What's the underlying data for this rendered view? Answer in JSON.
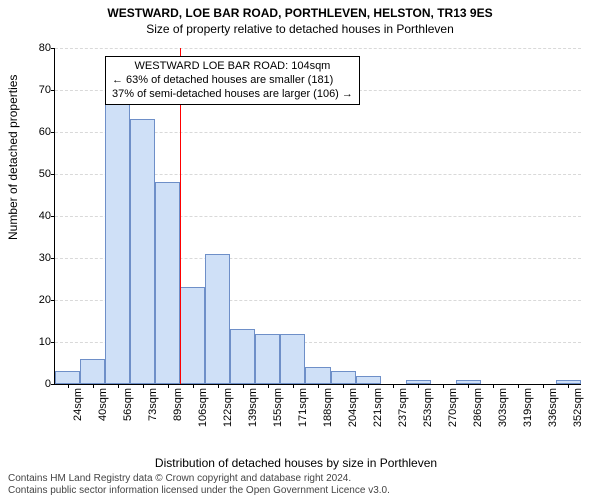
{
  "header": {
    "address": "WESTWARD, LOE BAR ROAD, PORTHLEVEN, HELSTON, TR13 9ES",
    "subtitle": "Size of property relative to detached houses in Porthleven",
    "address_fontsize": 12,
    "subtitle_fontsize": 12
  },
  "chart": {
    "type": "histogram",
    "y_label": "Number of detached properties",
    "x_label": "Distribution of detached houses by size in Porthleven",
    "label_fontsize": 12,
    "tick_fontsize": 11,
    "background_color": "#ffffff",
    "bar_fill": "#cfe0f7",
    "bar_stroke": "#6e8fc8",
    "grid_color": "#d9d9d9",
    "ref_line_color": "#ff0000",
    "ref_line_x_index": 5,
    "ylim": [
      0,
      80
    ],
    "ytick_step": 10,
    "bar_width_ratio": 1.0,
    "x_categories": [
      "24sqm",
      "40sqm",
      "56sqm",
      "73sqm",
      "89sqm",
      "106sqm",
      "122sqm",
      "139sqm",
      "155sqm",
      "171sqm",
      "188sqm",
      "204sqm",
      "221sqm",
      "237sqm",
      "253sqm",
      "270sqm",
      "286sqm",
      "303sqm",
      "319sqm",
      "336sqm",
      "352sqm"
    ],
    "values": [
      3,
      6,
      67,
      63,
      48,
      23,
      31,
      13,
      12,
      12,
      4,
      3,
      2,
      0,
      1,
      0,
      1,
      0,
      0,
      0,
      1
    ],
    "annotation": {
      "lines": [
        "WESTWARD LOE BAR ROAD: 104sqm",
        "← 63% of detached houses are smaller (181)",
        "37% of semi-detached houses are larger (106) →"
      ],
      "fontsize": 11
    }
  },
  "footer": {
    "line1": "Contains HM Land Registry data © Crown copyright and database right 2024.",
    "line2": "Contains public sector information licensed under the Open Government Licence v3.0.",
    "fontsize": 10,
    "color": "#444444"
  }
}
